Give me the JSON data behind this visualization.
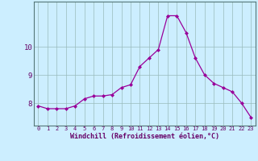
{
  "hours": [
    0,
    1,
    2,
    3,
    4,
    5,
    6,
    7,
    8,
    9,
    10,
    11,
    12,
    13,
    14,
    15,
    16,
    17,
    18,
    19,
    20,
    21,
    22,
    23
  ],
  "values": [
    7.9,
    7.8,
    7.8,
    7.8,
    7.9,
    8.15,
    8.25,
    8.25,
    8.3,
    8.55,
    8.65,
    9.3,
    9.6,
    9.9,
    11.1,
    11.1,
    10.5,
    9.6,
    9.0,
    8.7,
    8.55,
    8.4,
    8.0,
    7.5
  ],
  "line_color": "#990099",
  "marker": "D",
  "marker_size": 2.0,
  "bg_color": "#cceeff",
  "grid_color": "#99bbbb",
  "xlabel": "Windchill (Refroidissement éolien,°C)",
  "xlabel_color": "#660066",
  "tick_color": "#660066",
  "ylabel_ticks": [
    8,
    9,
    10
  ],
  "ylim": [
    7.2,
    11.6
  ],
  "xlim": [
    -0.5,
    23.5
  ],
  "xtick_fontsize": 5.0,
  "ytick_fontsize": 6.5,
  "xlabel_fontsize": 6.0
}
